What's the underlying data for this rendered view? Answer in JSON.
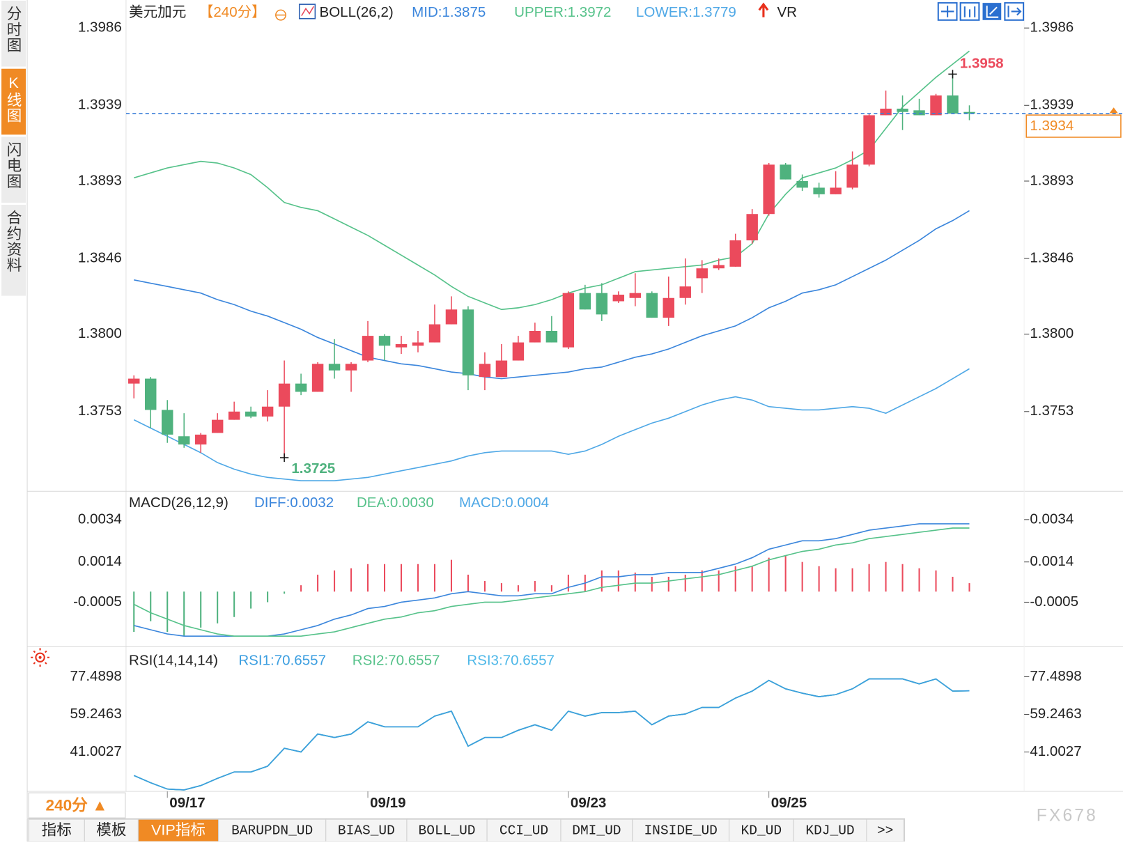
{
  "sidebar": {
    "tabs": [
      "分时图",
      "K线图",
      "闪电图",
      "合约资料"
    ]
  },
  "chart_data": [
    {
      "type": "candlestick",
      "title": "美元加元",
      "period": "【240分】",
      "indicator": "BOLL(26,2)",
      "extra": "VR",
      "categories": [
        null,
        null,
        "09/17",
        null,
        null,
        null,
        null,
        null,
        null,
        null,
        null,
        null,
        null,
        null,
        "09/19",
        null,
        null,
        null,
        null,
        null,
        null,
        null,
        null,
        null,
        null,
        null,
        "09/23",
        null,
        null,
        null,
        null,
        null,
        null,
        null,
        null,
        null,
        null,
        null,
        "09/25",
        null,
        null,
        null,
        null,
        null,
        null,
        null,
        null,
        null,
        null,
        null,
        null
      ],
      "open": [
        1.377,
        1.3773,
        1.3754,
        1.3738,
        1.3733,
        1.374,
        1.3748,
        1.3753,
        1.375,
        1.3756,
        1.377,
        1.3765,
        1.3782,
        1.3778,
        1.3784,
        1.3799,
        1.3792,
        1.3793,
        1.3795,
        1.3806,
        1.3815,
        1.3774,
        1.3774,
        1.3784,
        1.3795,
        1.3802,
        1.3792,
        1.3825,
        1.3825,
        1.382,
        1.3822,
        1.3825,
        1.381,
        1.3822,
        1.3834,
        1.384,
        1.3841,
        1.3857,
        1.3873,
        1.3903,
        1.3893,
        1.3889,
        1.3885,
        1.3889,
        1.3903,
        1.3933,
        1.3937,
        1.3936,
        1.3933,
        1.3945,
        1.3935
      ],
      "high": [
        1.3775,
        1.3774,
        1.376,
        1.3752,
        1.374,
        1.3752,
        1.3759,
        1.3756,
        1.3766,
        1.3784,
        1.3776,
        1.3783,
        1.3797,
        1.3783,
        1.3808,
        1.38,
        1.3799,
        1.3802,
        1.3818,
        1.3823,
        1.3817,
        1.3789,
        1.3794,
        1.3799,
        1.3807,
        1.3811,
        1.3826,
        1.383,
        1.3831,
        1.3826,
        1.3837,
        1.3826,
        1.3835,
        1.3846,
        1.3845,
        1.3846,
        1.3861,
        1.3876,
        1.3904,
        1.3904,
        1.3897,
        1.3892,
        1.3899,
        1.3911,
        1.3934,
        1.3948,
        1.3945,
        1.3943,
        1.3946,
        1.3958,
        1.3939
      ],
      "low": [
        1.3761,
        1.3743,
        1.3734,
        1.3731,
        1.3728,
        1.374,
        1.3748,
        1.3749,
        1.3747,
        1.3725,
        1.3763,
        1.3765,
        1.3773,
        1.3765,
        1.3783,
        1.3784,
        1.3788,
        1.3789,
        1.3795,
        1.3806,
        1.3766,
        1.3766,
        1.3774,
        1.3784,
        1.3795,
        1.3795,
        1.3791,
        1.3815,
        1.3808,
        1.3819,
        1.3817,
        1.381,
        1.3805,
        1.3818,
        1.3825,
        1.3839,
        1.3841,
        1.3855,
        1.3872,
        1.3894,
        1.3887,
        1.3883,
        1.3885,
        1.3888,
        1.3902,
        1.3933,
        1.3924,
        1.3933,
        1.3933,
        1.3934,
        1.393
      ],
      "close": [
        1.3773,
        1.3754,
        1.3739,
        1.3733,
        1.3739,
        1.3748,
        1.3753,
        1.375,
        1.3756,
        1.377,
        1.3765,
        1.3782,
        1.3778,
        1.3782,
        1.3799,
        1.3793,
        1.3794,
        1.3795,
        1.3806,
        1.3815,
        1.3775,
        1.3782,
        1.3784,
        1.3795,
        1.3802,
        1.3795,
        1.3825,
        1.3815,
        1.3812,
        1.3824,
        1.3825,
        1.381,
        1.3822,
        1.3829,
        1.384,
        1.3842,
        1.3857,
        1.3873,
        1.3903,
        1.3894,
        1.3889,
        1.3885,
        1.3889,
        1.3903,
        1.3933,
        1.3937,
        1.3935,
        1.3933,
        1.3945,
        1.3934,
        1.3934
      ],
      "up_color": "#eb4a5c",
      "down_color": "#4fb27e",
      "series": [
        {
          "name": "MID:1.3875",
          "color": "#3b86dc",
          "values": [
            1.3833,
            1.3831,
            1.3829,
            1.3827,
            1.3825,
            1.3821,
            1.3818,
            1.3814,
            1.3811,
            1.3807,
            1.3803,
            1.3798,
            1.3794,
            1.379,
            1.3786,
            1.3784,
            1.3782,
            1.3781,
            1.3779,
            1.3777,
            1.3776,
            1.3774,
            1.3773,
            1.3774,
            1.3775,
            1.3776,
            1.3777,
            1.3779,
            1.378,
            1.3783,
            1.3786,
            1.3788,
            1.3791,
            1.3795,
            1.3799,
            1.3802,
            1.3805,
            1.381,
            1.3816,
            1.382,
            1.3825,
            1.3827,
            1.383,
            1.3835,
            1.384,
            1.3845,
            1.3851,
            1.3857,
            1.3864,
            1.3869,
            1.3875
          ]
        },
        {
          "name": "UPPER:1.3972",
          "color": "#56c28a",
          "values": [
            1.3895,
            1.3898,
            1.3901,
            1.3903,
            1.3905,
            1.3904,
            1.3901,
            1.3897,
            1.3889,
            1.388,
            1.3877,
            1.3875,
            1.387,
            1.3865,
            1.386,
            1.3854,
            1.3848,
            1.3842,
            1.3836,
            1.3829,
            1.3823,
            1.3819,
            1.3815,
            1.3816,
            1.3818,
            1.3821,
            1.3825,
            1.3828,
            1.383,
            1.3834,
            1.3838,
            1.3839,
            1.384,
            1.3841,
            1.3842,
            1.3845,
            1.3847,
            1.3855,
            1.3873,
            1.3885,
            1.3895,
            1.3898,
            1.3901,
            1.3906,
            1.3912,
            1.3925,
            1.3938,
            1.3947,
            1.3956,
            1.3964,
            1.3972
          ]
        },
        {
          "name": "LOWER:1.3779",
          "color": "#4fa8e6",
          "values": [
            1.3748,
            1.3743,
            1.3738,
            1.3733,
            1.3728,
            1.3722,
            1.3718,
            1.3715,
            1.3713,
            1.3712,
            1.3711,
            1.3711,
            1.3711,
            1.3712,
            1.3713,
            1.3715,
            1.3717,
            1.3719,
            1.3721,
            1.3723,
            1.3726,
            1.3728,
            1.3729,
            1.3729,
            1.3729,
            1.3729,
            1.3727,
            1.3729,
            1.3733,
            1.3738,
            1.3742,
            1.3746,
            1.3749,
            1.3753,
            1.3757,
            1.376,
            1.3762,
            1.376,
            1.3756,
            1.3755,
            1.3754,
            1.3754,
            1.3755,
            1.3756,
            1.3755,
            1.3752,
            1.3757,
            1.3762,
            1.3767,
            1.3773,
            1.3779
          ]
        }
      ],
      "current_price": 1.3934,
      "current_color": "#f08a24",
      "annotations": [
        "1.3958",
        "1.3725"
      ],
      "ylim": [
        1.3705,
        1.4003
      ],
      "yticks": [
        1.3753,
        {
          "value": 1.38,
          "label": "1.3800"
        },
        1.3846,
        1.3893,
        1.3939,
        1.3986
      ]
    },
    {
      "type": "macd",
      "title": "MACD(26,12,9)",
      "series": [
        {
          "name": "DIFF:0.0032",
          "color": "#3b86dc",
          "values": [
            -0.0016,
            -0.0018,
            -0.002,
            -0.0021,
            -0.0021,
            -0.0021,
            -0.0021,
            -0.0021,
            -0.0021,
            -0.002,
            -0.0018,
            -0.0016,
            -0.0013,
            -0.0011,
            -0.0008,
            -0.0007,
            -0.0005,
            -0.0004,
            -0.0003,
            -0.0001,
            0.0,
            -0.0001,
            -0.0002,
            -0.0002,
            -0.0001,
            -0.0001,
            0.0002,
            0.0004,
            0.0007,
            0.0007,
            0.0008,
            0.0008,
            0.0009,
            0.0009,
            0.0009,
            0.0011,
            0.0013,
            0.0016,
            0.002,
            0.0022,
            0.0024,
            0.0024,
            0.0025,
            0.0027,
            0.0029,
            0.003,
            0.0031,
            0.0032,
            0.0032,
            0.0032,
            0.0032
          ]
        },
        {
          "name": "DEA:0.0030",
          "color": "#56c28a",
          "values": [
            -0.0006,
            -0.001,
            -0.0013,
            -0.0016,
            -0.0018,
            -0.002,
            -0.0021,
            -0.0021,
            -0.0021,
            -0.0021,
            -0.0021,
            -0.002,
            -0.0019,
            -0.0017,
            -0.0015,
            -0.0013,
            -0.0012,
            -0.001,
            -0.0009,
            -0.0007,
            -0.0006,
            -0.0005,
            -0.0005,
            -0.0004,
            -0.0003,
            -0.0002,
            -0.0001,
            0.0,
            0.0002,
            0.0003,
            0.0004,
            0.0004,
            0.0005,
            0.0006,
            0.0007,
            0.0008,
            0.001,
            0.0012,
            0.0015,
            0.0017,
            0.0019,
            0.002,
            0.0022,
            0.0023,
            0.0025,
            0.0026,
            0.0027,
            0.0028,
            0.0029,
            0.003,
            0.003
          ]
        },
        {
          "name": "MACD:0.0004",
          "color": "#4fa8e6",
          "kind": "histogram",
          "up_color": "#eb4a5c",
          "down_color": "#4fb27e",
          "values": [
            -0.0019,
            -0.0014,
            -0.0019,
            -0.0021,
            -0.0017,
            -0.0015,
            -0.0012,
            -0.0008,
            -0.0005,
            -0.0001,
            0.0003,
            0.0008,
            0.001,
            0.0011,
            0.0013,
            0.0013,
            0.0013,
            0.0013,
            0.0013,
            0.0015,
            0.0008,
            0.0005,
            0.0004,
            0.0003,
            0.0005,
            0.0003,
            0.0008,
            0.0008,
            0.001,
            0.001,
            0.0009,
            0.0007,
            0.0007,
            0.0008,
            0.001,
            0.001,
            0.0012,
            0.0012,
            0.0016,
            0.0017,
            0.0014,
            0.0012,
            0.0011,
            0.0011,
            0.0013,
            0.0014,
            0.0013,
            0.0011,
            0.001,
            0.0007,
            0.0004
          ]
        }
      ],
      "ylim": [
        -0.0025,
        0.0046
      ],
      "yticks": [
        -0.0005,
        0.0014,
        0.0034
      ]
    },
    {
      "type": "line",
      "title": "RSI(14,14,14)",
      "series": [
        {
          "name": "RSI1:70.6557",
          "color": "#3b9ee0",
          "values": [
            29.6,
            26.1,
            23.0,
            22.6,
            24.7,
            28.2,
            31.3,
            31.3,
            34.1,
            42.8,
            41.0,
            49.7,
            48.0,
            49.7,
            55.6,
            53.2,
            53.2,
            53.2,
            58.4,
            60.8,
            43.8,
            48.0,
            48.0,
            51.5,
            54.2,
            51.5,
            60.8,
            58.4,
            60.1,
            60.1,
            60.8,
            54.2,
            58.4,
            59.4,
            62.6,
            62.6,
            67.1,
            70.5,
            75.7,
            71.6,
            69.5,
            67.8,
            68.8,
            71.6,
            76.4,
            76.4,
            76.4,
            74.0,
            76.4,
            70.5,
            70.6557
          ]
        },
        {
          "name": "RSI2:70.6557",
          "color": "#56c28a",
          "values": [
            29.6,
            26.1,
            23.0,
            22.6,
            24.7,
            28.2,
            31.3,
            31.3,
            34.1,
            42.8,
            41.0,
            49.7,
            48.0,
            49.7,
            55.6,
            53.2,
            53.2,
            53.2,
            58.4,
            60.8,
            43.8,
            48.0,
            48.0,
            51.5,
            54.2,
            51.5,
            60.8,
            58.4,
            60.1,
            60.1,
            60.8,
            54.2,
            58.4,
            59.4,
            62.6,
            62.6,
            67.1,
            70.5,
            75.7,
            71.6,
            69.5,
            67.8,
            68.8,
            71.6,
            76.4,
            76.4,
            76.4,
            74.0,
            76.4,
            70.5,
            70.6557
          ]
        },
        {
          "name": "RSI3:70.6557",
          "color": "#4fb8e8",
          "values": [
            29.6,
            26.1,
            23.0,
            22.6,
            24.7,
            28.2,
            31.3,
            31.3,
            34.1,
            42.8,
            41.0,
            49.7,
            48.0,
            49.7,
            55.6,
            53.2,
            53.2,
            53.2,
            58.4,
            60.8,
            43.8,
            48.0,
            48.0,
            51.5,
            54.2,
            51.5,
            60.8,
            58.4,
            60.1,
            60.1,
            60.8,
            54.2,
            58.4,
            59.4,
            62.6,
            62.6,
            67.1,
            70.5,
            75.7,
            71.6,
            69.5,
            67.8,
            68.8,
            71.6,
            76.4,
            76.4,
            76.4,
            74.0,
            76.4,
            70.5,
            70.6557
          ]
        }
      ],
      "ylim": [
        21.9,
        89.6
      ],
      "yticks": [
        41.0027,
        59.2463,
        77.4898
      ]
    }
  ],
  "footer": {
    "period": "240分 ▲",
    "tabs": [
      "指标",
      "模板",
      "VIP指标",
      "BARUPDN_UD",
      "BIAS_UD",
      "BOLL_UD",
      "CCI_UD",
      "DMI_UD",
      "INSIDE_UD",
      "KD_UD",
      "KDJ_UD",
      ">>"
    ],
    "watermark": "FX678"
  }
}
